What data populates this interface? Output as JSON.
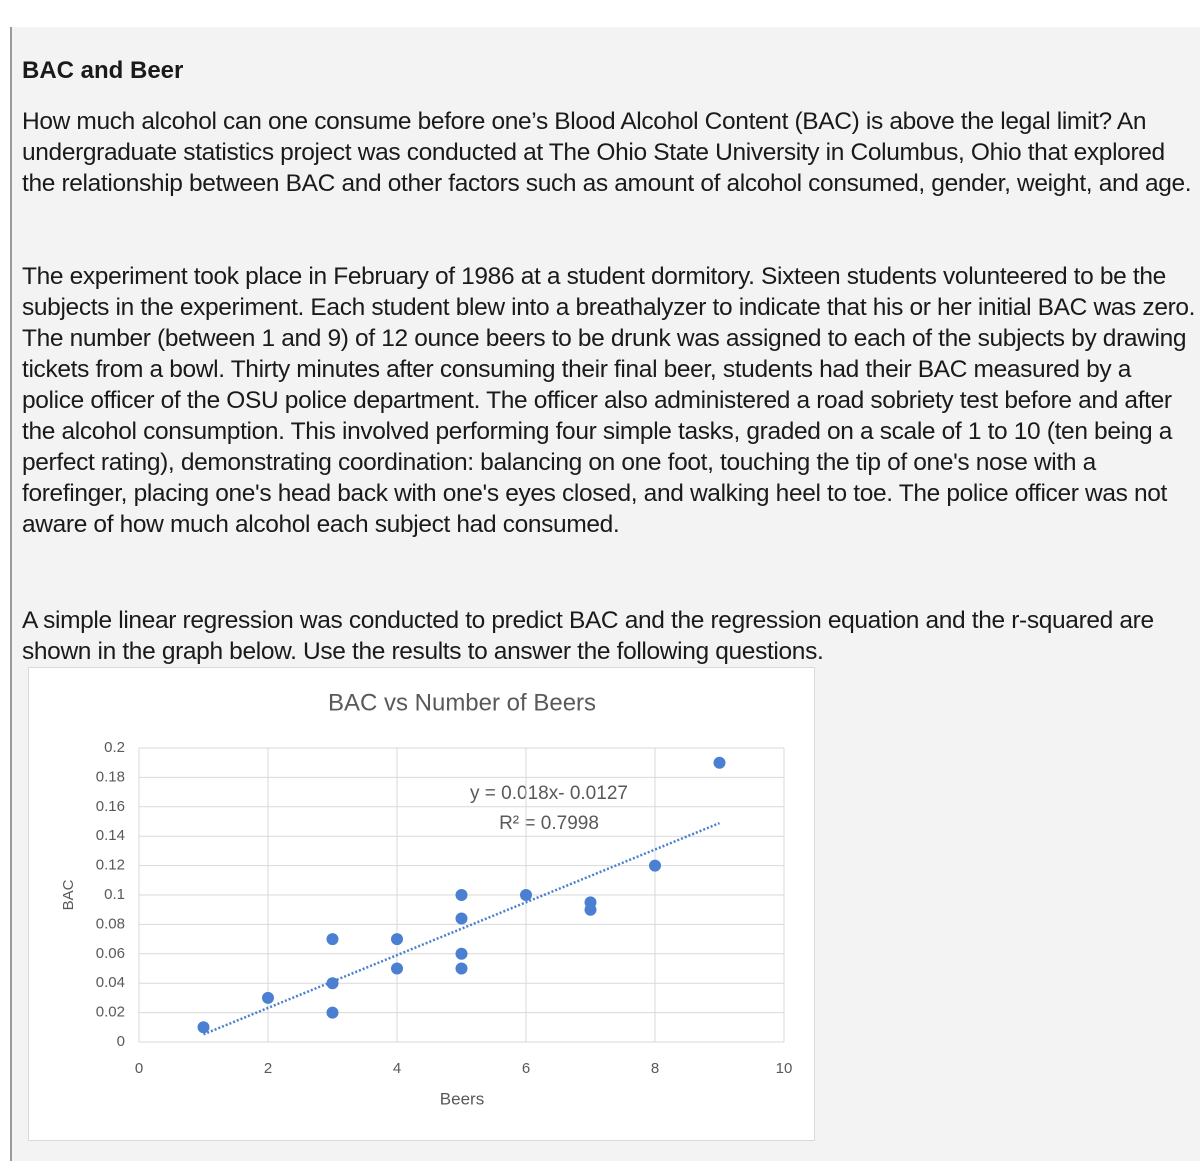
{
  "document": {
    "title": "BAC and Beer",
    "paragraphs": [
      "How much alcohol can one consume before one’s Blood Alcohol Content (BAC) is above the legal limit? An undergraduate statistics project was conducted at The Ohio State University in Columbus, Ohio that explored the relationship between BAC and other factors such as amount of alcohol consumed, gender, weight, and age.",
      "The experiment took place in February of 1986 at a student dormitory. Sixteen students volunteered to be the subjects in the experiment. Each student blew into a breathalyzer to indicate that his or her initial BAC was zero. The number (between 1 and 9) of 12 ounce beers to be drunk was assigned to each of the subjects by drawing tickets from a bowl. Thirty minutes after consuming their final beer, students had their BAC measured by a police officer of the OSU police department. The officer also administered a road sobriety test before and after the alcohol consumption. This involved performing four simple tasks, graded on a scale of 1 to 10 (ten being a perfect rating), demonstrating coordination: balancing on one foot, touching the tip of one's nose with a forefinger, placing one's head back with one's eyes closed, and walking heel to toe. The police officer was not aware of how much alcohol each subject had consumed.",
      "A simple linear regression was conducted to predict BAC and the regression equation and the r-squared are shown in the graph below. Use the results to answer the following questions."
    ]
  },
  "chart_data": {
    "type": "scatter",
    "title": "BAC vs Number of Beers",
    "x_label": "Beers",
    "y_label": "BAC",
    "x": [
      1,
      2,
      3,
      3,
      3,
      4,
      4,
      5,
      5,
      5,
      5,
      6,
      7,
      7,
      8,
      9
    ],
    "values": [
      0.01,
      0.03,
      0.07,
      0.04,
      0.02,
      0.07,
      0.05,
      0.1,
      0.084,
      0.06,
      0.05,
      0.1,
      0.095,
      0.09,
      0.12,
      0.19
    ],
    "color": "#4a7fd1",
    "trendline_equation": "y = 0.018x- 0.0127",
    "trendline_r2": "R² = 0.7998",
    "xlim": [
      0,
      10
    ],
    "xticks": [
      0,
      2,
      4,
      6,
      8,
      10
    ],
    "ylim": [
      0,
      0.2
    ],
    "yticks": [
      0,
      0.02,
      0.04,
      0.06,
      0.08,
      0.1,
      0.12,
      0.14,
      0.16,
      0.18,
      0.2
    ],
    "grid": true
  }
}
